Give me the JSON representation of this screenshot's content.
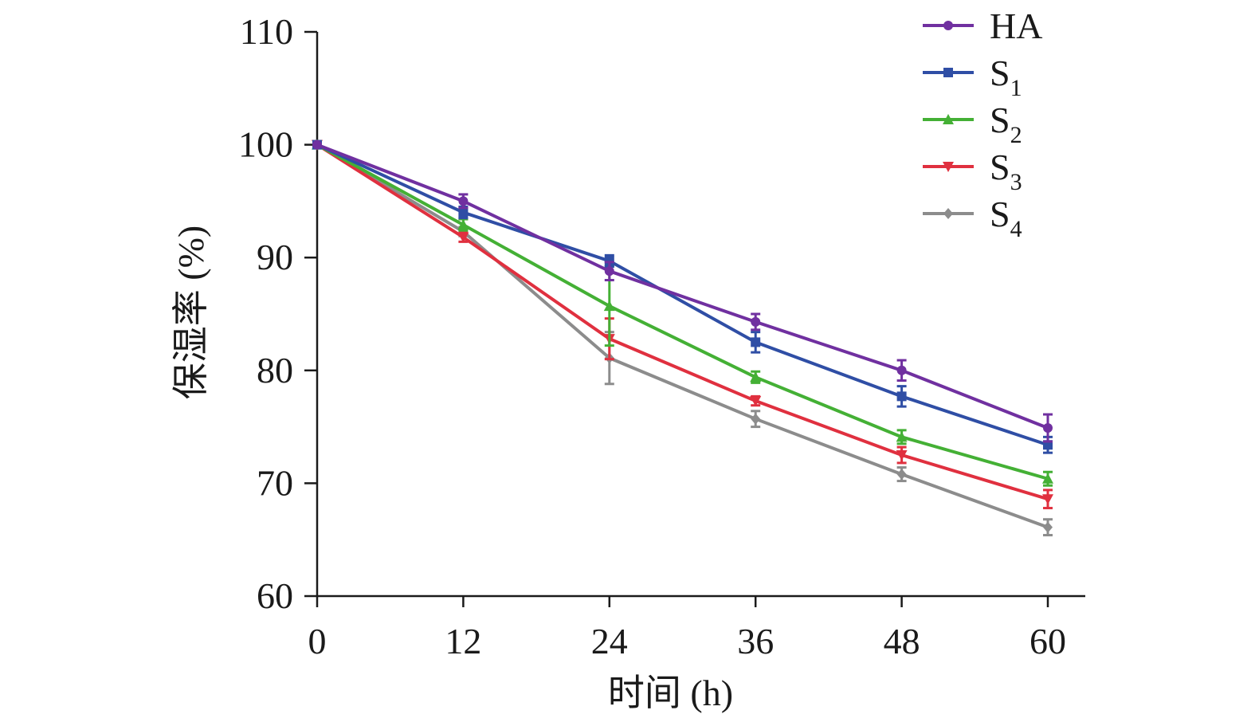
{
  "chart_data": {
    "type": "line",
    "title": "",
    "xlabel": "时间 (h)",
    "ylabel": "保湿率 (%)",
    "x": [
      0,
      12,
      24,
      36,
      48,
      60
    ],
    "xlim": [
      0,
      60
    ],
    "ylim": [
      60,
      110
    ],
    "xticks": [
      "0",
      "12",
      "24",
      "36",
      "48",
      "60"
    ],
    "yticks": [
      "60",
      "70",
      "80",
      "90",
      "100",
      "110"
    ],
    "grid": false,
    "legend_position": "top-right",
    "series": [
      {
        "name": "HA",
        "sub": "",
        "color": "#7030a0",
        "marker": "circle",
        "values": [
          100,
          95.0,
          88.8,
          84.3,
          80.0,
          74.9
        ],
        "errors": [
          0,
          0.6,
          0.8,
          0.7,
          0.9,
          1.2
        ]
      },
      {
        "name": "S",
        "sub": "1",
        "color": "#2f4ea5",
        "marker": "square",
        "values": [
          100,
          94.0,
          89.7,
          82.5,
          77.7,
          73.4
        ],
        "errors": [
          0,
          0.5,
          0.5,
          0.9,
          0.9,
          0.7
        ]
      },
      {
        "name": "S",
        "sub": "2",
        "color": "#44b035",
        "marker": "triangle-up",
        "values": [
          100,
          92.9,
          85.7,
          79.4,
          74.1,
          70.4
        ],
        "errors": [
          0,
          0.5,
          3.5,
          0.5,
          0.6,
          0.6
        ]
      },
      {
        "name": "S",
        "sub": "3",
        "color": "#e0303f",
        "marker": "triangle-down",
        "values": [
          100,
          91.8,
          82.8,
          77.3,
          72.5,
          68.6
        ],
        "errors": [
          0,
          0.4,
          1.8,
          0.4,
          0.7,
          0.8
        ]
      },
      {
        "name": "S",
        "sub": "4",
        "color": "#8c8c8c",
        "marker": "diamond",
        "values": [
          100,
          92.3,
          81.1,
          75.7,
          70.8,
          66.1
        ],
        "errors": [
          0,
          0.4,
          2.3,
          0.7,
          0.6,
          0.7
        ]
      }
    ]
  }
}
